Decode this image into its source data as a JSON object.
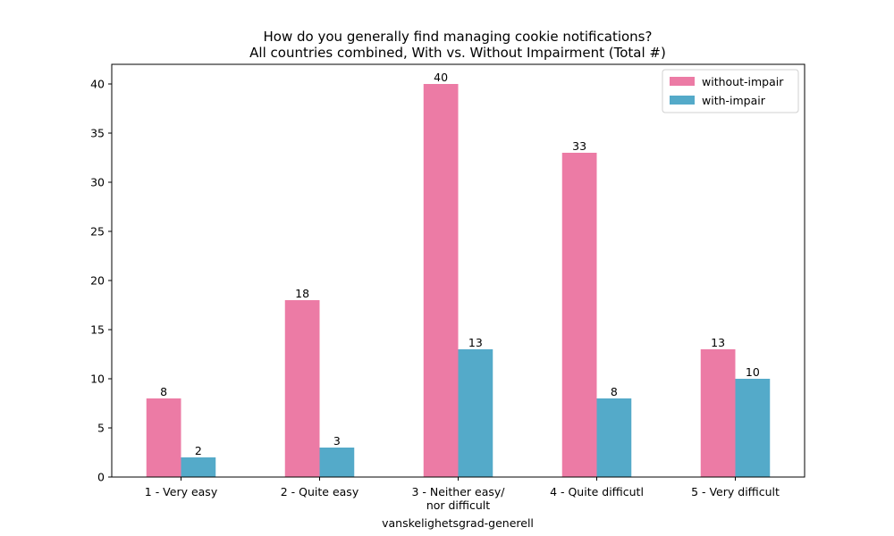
{
  "chart_data": {
    "type": "bar",
    "title": "How do you generally find managing cookie notifications?",
    "subtitle": "All countries combined, With vs. Without Impairment (Total #)",
    "xlabel": "vanskelighetsgrad-generell",
    "ylabel": "",
    "categories": [
      [
        "1 - Very easy"
      ],
      [
        "2 - Quite easy"
      ],
      [
        "3 - Neither easy/",
        "nor difficult"
      ],
      [
        "4 - Quite difficutl"
      ],
      [
        "5 - Very difficult"
      ]
    ],
    "series": [
      {
        "name": "without-impair",
        "color": "#ec7ba5",
        "values": [
          8,
          18,
          40,
          33,
          13
        ]
      },
      {
        "name": "with-impair",
        "color": "#54aac9",
        "values": [
          2,
          3,
          13,
          8,
          10
        ]
      }
    ],
    "ylim": [
      0,
      42
    ],
    "yticks": [
      0,
      5,
      10,
      15,
      20,
      25,
      30,
      35,
      40
    ],
    "legend_position": "top-right",
    "grid": false
  }
}
